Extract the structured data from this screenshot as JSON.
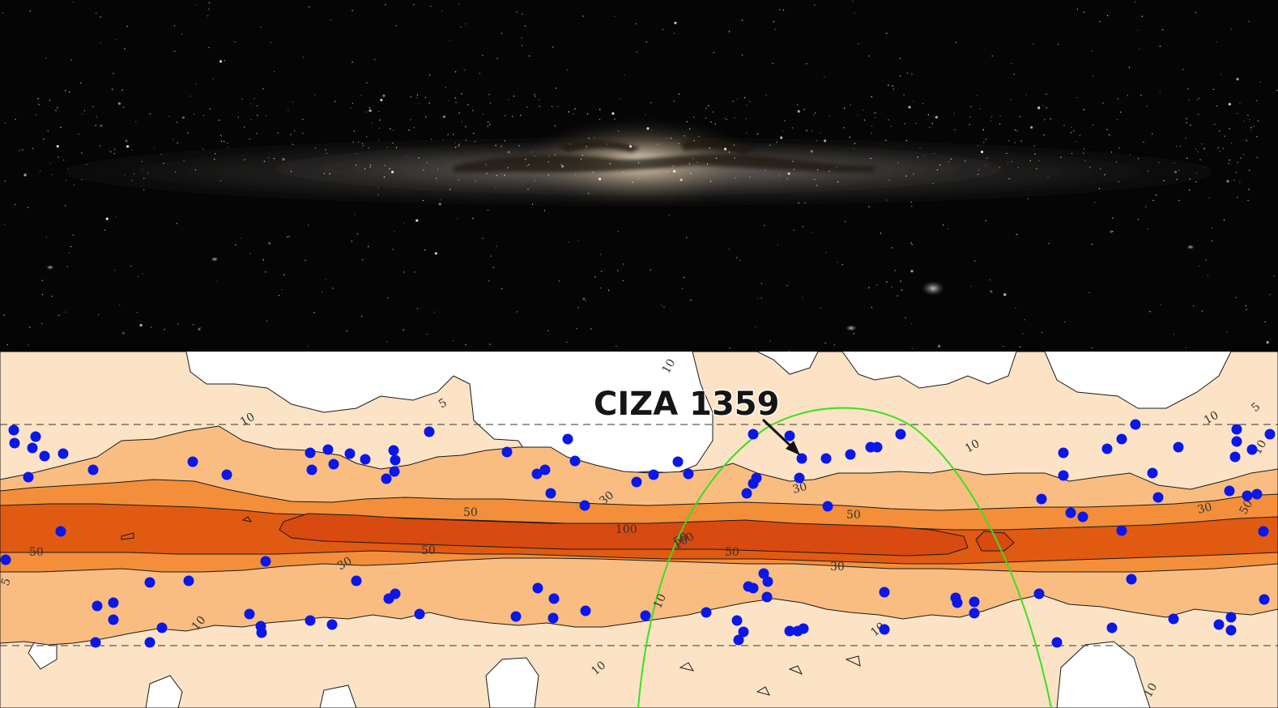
{
  "top_panel": {
    "content": "milky-way-panorama"
  },
  "bottom_panel": {
    "content": "extinction-contour-map",
    "colors": {
      "background": "#ffffff",
      "level_10": "#fde3c6",
      "level_30": "#f9bd82",
      "level_50": "#f38f3a",
      "level_100": "#e05a12",
      "level_core": "#d84a10",
      "points": "#0a17ea",
      "ellipse": "#39e021",
      "contour_line": "#1a1a1a"
    },
    "contour_labels": [
      {
        "text": "10"
      },
      {
        "text": "10"
      },
      {
        "text": "10"
      },
      {
        "text": "10"
      },
      {
        "text": "10"
      },
      {
        "text": "10"
      },
      {
        "text": "10"
      },
      {
        "text": "10"
      },
      {
        "text": "10"
      },
      {
        "text": "10"
      },
      {
        "text": "5"
      },
      {
        "text": "5"
      },
      {
        "text": "5"
      },
      {
        "text": "30"
      },
      {
        "text": "30"
      },
      {
        "text": "30"
      },
      {
        "text": "30"
      },
      {
        "text": "30"
      },
      {
        "text": "50"
      },
      {
        "text": "50"
      },
      {
        "text": "50"
      },
      {
        "text": "50"
      },
      {
        "text": "50"
      },
      {
        "text": "50"
      },
      {
        "text": "50"
      },
      {
        "text": "100"
      },
      {
        "text": "100"
      }
    ],
    "callout": {
      "label": "CIZA 1359"
    }
  }
}
